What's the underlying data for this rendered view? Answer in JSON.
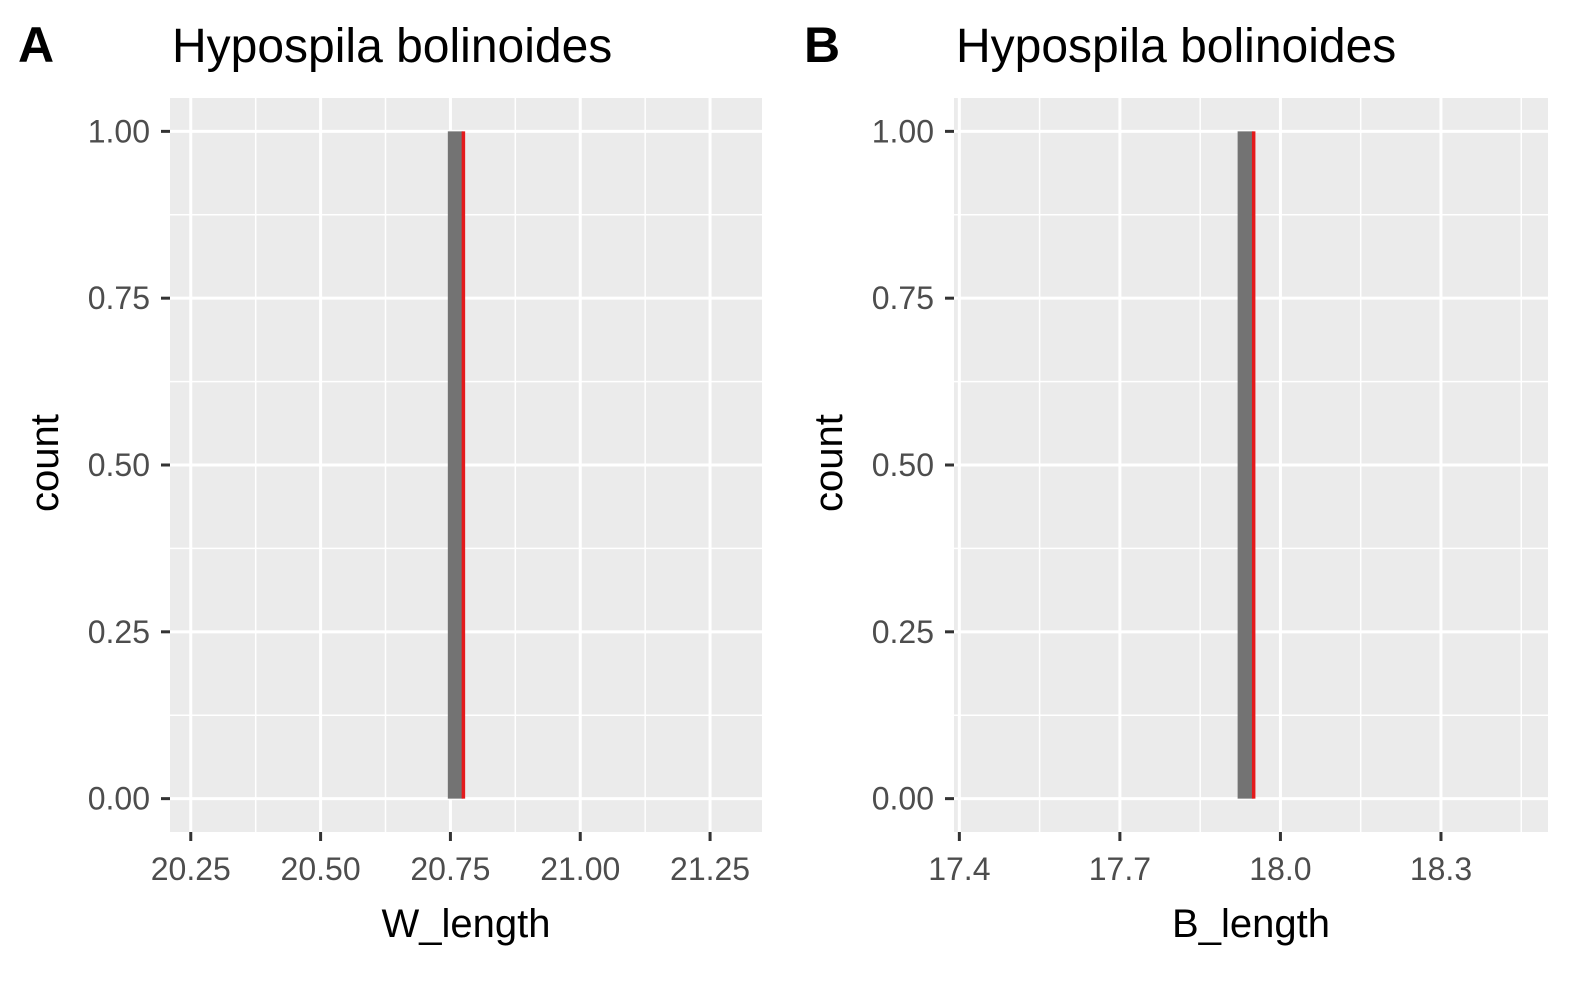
{
  "chart_data": [
    {
      "type": "bar",
      "tag": "A",
      "title": "Hypospila bolinoides",
      "xlabel": "W_length",
      "ylabel": "count",
      "xlim": [
        20.21,
        21.35
      ],
      "ylim": [
        -0.05,
        1.05
      ],
      "x_ticks": [
        20.25,
        20.5,
        20.75,
        21.0,
        21.25
      ],
      "x_tick_labels": [
        "20.25",
        "20.50",
        "20.75",
        "21.00",
        "21.25"
      ],
      "y_ticks": [
        0,
        0.25,
        0.5,
        0.75,
        1.0
      ],
      "y_tick_labels": [
        "0.00",
        "0.25",
        "0.50",
        "0.75",
        "1.00"
      ],
      "bars": [
        {
          "x_start": 20.745,
          "x_end": 20.775,
          "count": 1
        }
      ],
      "reference_line": {
        "x": 20.775,
        "color": "#e41a1c"
      },
      "bar_color": "#737373",
      "panel_background": "#ebebeb",
      "grid": true
    },
    {
      "type": "bar",
      "tag": "B",
      "title": "Hypospila bolinoides",
      "xlabel": "B_length",
      "ylabel": "count",
      "xlim": [
        17.39,
        18.5
      ],
      "ylim": [
        -0.05,
        1.05
      ],
      "x_ticks": [
        17.4,
        17.7,
        18.0,
        18.3
      ],
      "x_tick_labels": [
        "17.4",
        "17.7",
        "18.0",
        "18.3"
      ],
      "y_ticks": [
        0,
        0.25,
        0.5,
        0.75,
        1.0
      ],
      "y_tick_labels": [
        "0.00",
        "0.25",
        "0.50",
        "0.75",
        "1.00"
      ],
      "bars": [
        {
          "x_start": 17.92,
          "x_end": 17.95,
          "count": 1
        }
      ],
      "reference_line": {
        "x": 17.95,
        "color": "#e41a1c"
      },
      "bar_color": "#737373",
      "panel_background": "#ebebeb",
      "grid": true
    }
  ]
}
